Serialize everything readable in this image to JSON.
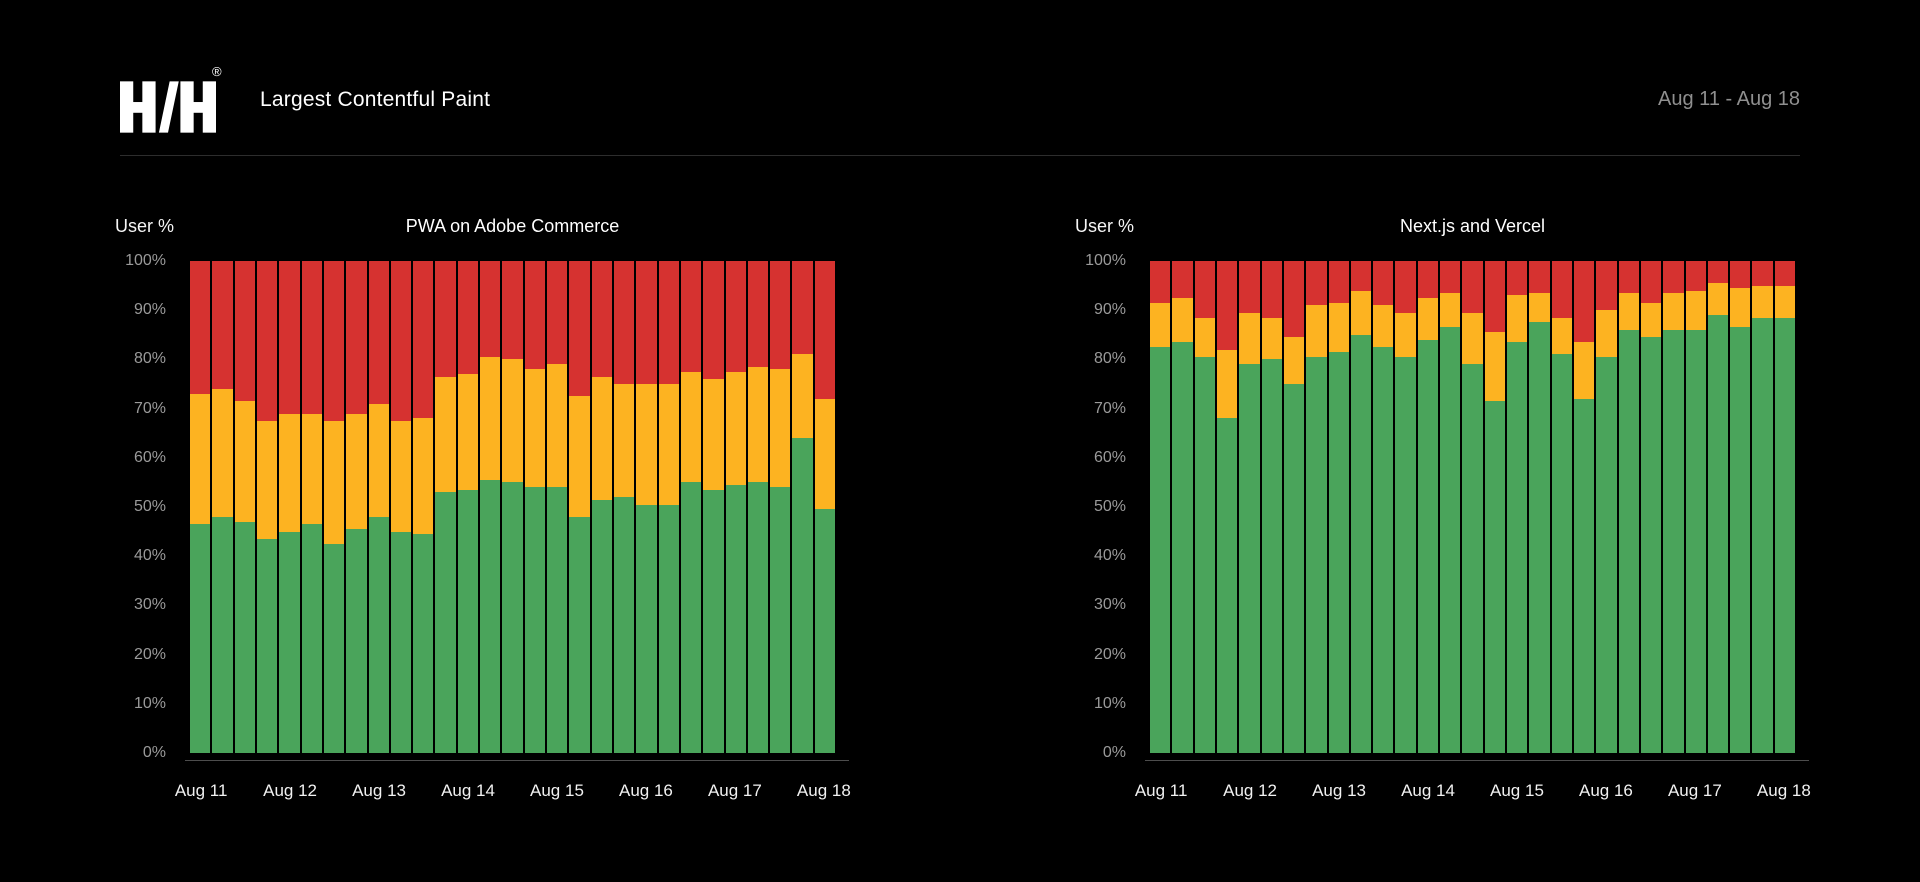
{
  "app": {
    "header": {
      "logo": "H/H",
      "registered_mark": "®",
      "title": "Largest Contentful Paint",
      "date_range": "Aug 11 - Aug 18"
    }
  },
  "colors": {
    "background": "#000000",
    "good": "#4AA45B",
    "needs_improvement": "#FDB321",
    "poor": "#D63230",
    "y_label": "#9A9A9A",
    "x_label": "#F1F1F1",
    "chart_title": "#FFFFFF",
    "date_range_text": "#8F8F8F",
    "divider": "#2D2D2D",
    "axis_line": "#4D4D4D"
  },
  "chart_data": [
    {
      "type": "bar",
      "stacked": true,
      "title": "PWA on Adobe Commerce",
      "ylabel": "User %",
      "ylim": [
        0,
        100
      ],
      "grid": false,
      "legend": "none",
      "bar_count": 29,
      "y_tick_labels": [
        "0%",
        "10%",
        "20%",
        "30%",
        "40%",
        "50%",
        "60%",
        "70%",
        "80%",
        "90%",
        "100%"
      ],
      "x_tick_labels": [
        "Aug 11",
        "Aug 12",
        "Aug 13",
        "Aug 14",
        "Aug 15",
        "Aug 16",
        "Aug 17",
        "Aug 18"
      ],
      "x_tick_bar_positions": [
        0,
        4,
        8,
        12,
        16,
        20,
        24,
        28
      ],
      "series": [
        {
          "name": "good",
          "color": "#4AA45B",
          "values": [
            46.5,
            48,
            47,
            43.5,
            45,
            46.5,
            42.5,
            45.5,
            48,
            45,
            44.5,
            53,
            53.5,
            55.5,
            55,
            54,
            54,
            48,
            51.5,
            52,
            50.5,
            50.5,
            55,
            53.5,
            54.5,
            55,
            54,
            64,
            49.5
          ]
        },
        {
          "name": "needs_improvement",
          "color": "#FDB321",
          "values": [
            26.5,
            26,
            24.5,
            24,
            24,
            22.5,
            25,
            23.5,
            23,
            22.5,
            23.5,
            23.5,
            23.5,
            25,
            25,
            24,
            25,
            24.5,
            25,
            23,
            24.5,
            24.5,
            22.5,
            22.5,
            23,
            23.5,
            24,
            17,
            22.5
          ]
        },
        {
          "name": "poor",
          "color": "#D63230",
          "values": [
            27,
            26,
            28.5,
            32.5,
            31,
            31,
            32.5,
            31,
            29,
            32.5,
            32,
            23.5,
            23,
            19.5,
            20,
            22,
            21,
            27.5,
            23.5,
            25,
            25,
            25,
            22.5,
            24,
            22.5,
            21.5,
            22,
            19,
            28
          ]
        }
      ]
    },
    {
      "type": "bar",
      "stacked": true,
      "title": "Next.js and Vercel",
      "ylabel": "User %",
      "ylim": [
        0,
        100
      ],
      "grid": false,
      "legend": "none",
      "bar_count": 29,
      "y_tick_labels": [
        "0%",
        "10%",
        "20%",
        "30%",
        "40%",
        "50%",
        "60%",
        "70%",
        "80%",
        "90%",
        "100%"
      ],
      "x_tick_labels": [
        "Aug 11",
        "Aug 12",
        "Aug 13",
        "Aug 14",
        "Aug 15",
        "Aug 16",
        "Aug 17",
        "Aug 18"
      ],
      "x_tick_bar_positions": [
        0,
        4,
        8,
        12,
        16,
        20,
        24,
        28
      ],
      "series": [
        {
          "name": "good",
          "color": "#4AA45B",
          "values": [
            82.5,
            83.5,
            80.5,
            68,
            79,
            80,
            75,
            80.5,
            81.5,
            85,
            82.5,
            80.5,
            84,
            86.5,
            79,
            71.5,
            83.5,
            87.5,
            81,
            72,
            80.5,
            86,
            84.5,
            86,
            86,
            89,
            86.5,
            88.5,
            88.5
          ]
        },
        {
          "name": "needs_improvement",
          "color": "#FDB321",
          "values": [
            9,
            9,
            8,
            14,
            10.5,
            8.5,
            9.5,
            10.5,
            10,
            9,
            8.5,
            9,
            8.5,
            7,
            10.5,
            14,
            9.5,
            6,
            7.5,
            11.5,
            9.5,
            7.5,
            7,
            7.5,
            8,
            6.5,
            8,
            6.5,
            6.5
          ]
        },
        {
          "name": "poor",
          "color": "#D63230",
          "values": [
            8.5,
            7.5,
            11.5,
            18,
            10.5,
            11.5,
            15.5,
            9,
            8.5,
            6,
            9,
            10.5,
            7.5,
            6.5,
            10.5,
            14.5,
            7,
            6.5,
            11.5,
            16.5,
            10,
            6.5,
            8.5,
            6.5,
            6,
            4.5,
            5.5,
            5,
            5
          ]
        }
      ]
    }
  ]
}
